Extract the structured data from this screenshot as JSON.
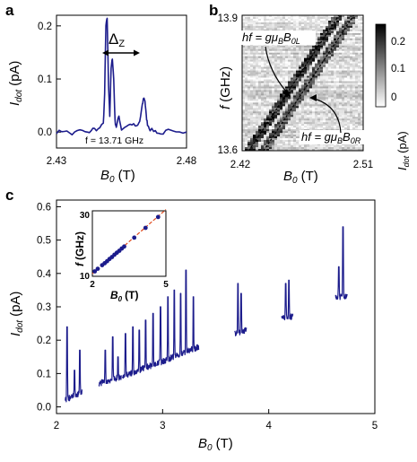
{
  "panels": {
    "a": {
      "label": "a"
    },
    "b": {
      "label": "b"
    },
    "c": {
      "label": "c"
    }
  },
  "chart_data": [
    {
      "id": "a",
      "type": "line",
      "x_ticks": [
        "2.43",
        "2.48"
      ],
      "y_ticks": [
        "0.0",
        "0.1",
        "0.2"
      ],
      "xlim": [
        2.43,
        2.48
      ],
      "ylim": [
        -0.03,
        0.22
      ],
      "xlabel_main": "B",
      "xlabel_sub": "0",
      "xlabel_unit": "(T)",
      "ylabel_main": "I",
      "ylabel_sub": "dot",
      "ylabel_unit": "(pA)",
      "annotation_freq": "f = 13.71 GHz",
      "annotation_delta_main": "Δ",
      "annotation_delta_sub": "Z",
      "color": "#1c1c8c",
      "x": [
        2.43,
        2.433,
        2.436,
        2.439,
        2.442,
        2.444,
        2.446,
        2.448,
        2.4485,
        2.449,
        2.4495,
        2.45,
        2.4505,
        2.451,
        2.4515,
        2.452,
        2.4525,
        2.453,
        2.454,
        2.455,
        2.457,
        2.459,
        2.461,
        2.462,
        2.463,
        2.4635,
        2.464,
        2.4645,
        2.465,
        2.466,
        2.468,
        2.47,
        2.473,
        2.476,
        2.48
      ],
      "y": [
        0.0,
        0.003,
        -0.004,
        0.004,
        -0.002,
        0.006,
        0.005,
        0.015,
        0.07,
        0.2,
        0.215,
        0.09,
        0.03,
        0.12,
        0.14,
        0.1,
        0.02,
        0.01,
        0.03,
        0.005,
        0.012,
        0.015,
        0.01,
        0.02,
        0.05,
        0.065,
        0.06,
        0.03,
        0.015,
        0.005,
        0.002,
        -0.004,
        0.003,
        -0.002,
        0.0
      ]
    },
    {
      "id": "b",
      "type": "heatmap",
      "x_ticks": [
        "2.42",
        "2.51"
      ],
      "y_ticks": [
        "13.6",
        "13.9"
      ],
      "xlim": [
        2.42,
        2.51
      ],
      "ylim": [
        13.6,
        13.9
      ],
      "xlabel_main": "B",
      "xlabel_sub": "0",
      "xlabel_unit": "(T)",
      "ylabel_main": "f",
      "ylabel_unit": "(GHz)",
      "colorbar_ticks": [
        "0.2",
        "0.1",
        "0"
      ],
      "colorbar_range": [
        0,
        0.25
      ],
      "colorbar_label_main": "I",
      "colorbar_label_sub": "dot",
      "colorbar_label_unit": "(pA)",
      "line_left_label": {
        "pre": "hf = gμ",
        "sub1": "B",
        "mid": "B",
        "sub2": "0L"
      },
      "line_right_label": {
        "pre": "hf = gμ",
        "sub1": "B",
        "mid": "B",
        "sub2": "0R"
      },
      "line_left": [
        [
          2.425,
          13.6
        ],
        [
          2.492,
          13.9
        ]
      ],
      "line_right": [
        [
          2.436,
          13.6
        ],
        [
          2.503,
          13.9
        ]
      ]
    },
    {
      "id": "c",
      "type": "line",
      "x_ticks": [
        "2",
        "3",
        "4",
        "5"
      ],
      "y_ticks": [
        "0.0",
        "0.1",
        "0.2",
        "0.3",
        "0.4",
        "0.5",
        "0.6"
      ],
      "xlim": [
        2,
        5
      ],
      "ylim": [
        -0.02,
        0.62
      ],
      "xlabel_main": "B",
      "xlabel_sub": "0",
      "xlabel_unit": "(T)",
      "ylabel_main": "I",
      "ylabel_sub": "dot",
      "ylabel_unit": "(pA)",
      "color": "#1c1c8c",
      "segments": [
        {
          "x0": 2.08,
          "x1": 2.24,
          "base0": 0.02,
          "base1": 0.045,
          "peaks": [
            [
              2.1,
              0.24
            ],
            [
              2.17,
              0.11
            ],
            [
              2.22,
              0.17
            ]
          ]
        },
        {
          "x0": 2.4,
          "x1": 2.61,
          "base0": 0.07,
          "base1": 0.09,
          "peaks": [
            [
              2.46,
              0.17
            ],
            [
              2.53,
              0.21
            ],
            [
              2.58,
              0.15
            ]
          ]
        },
        {
          "x0": 2.62,
          "x1": 2.94,
          "base0": 0.09,
          "base1": 0.13,
          "peaks": [
            [
              2.65,
              0.22
            ],
            [
              2.72,
              0.24
            ],
            [
              2.78,
              0.23
            ],
            [
              2.84,
              0.26
            ],
            [
              2.91,
              0.28
            ]
          ]
        },
        {
          "x0": 2.95,
          "x1": 3.34,
          "base0": 0.13,
          "base1": 0.18,
          "peaks": [
            [
              2.98,
              0.3
            ],
            [
              3.05,
              0.33
            ],
            [
              3.11,
              0.35
            ],
            [
              3.17,
              0.34
            ],
            [
              3.22,
              0.41
            ],
            [
              3.29,
              0.33
            ]
          ]
        },
        {
          "x0": 3.68,
          "x1": 3.79,
          "base0": 0.22,
          "base1": 0.23,
          "peaks": [
            [
              3.71,
              0.37
            ],
            [
              3.74,
              0.34
            ]
          ]
        },
        {
          "x0": 4.12,
          "x1": 4.23,
          "base0": 0.27,
          "base1": 0.27,
          "peaks": [
            [
              4.16,
              0.37
            ],
            [
              4.19,
              0.38
            ]
          ]
        },
        {
          "x0": 4.63,
          "x1": 4.74,
          "base0": 0.33,
          "base1": 0.33,
          "peaks": [
            [
              4.66,
              0.42
            ],
            [
              4.7,
              0.54
            ]
          ]
        }
      ],
      "inset": {
        "type": "scatter",
        "x_ticks": [
          "2",
          "5"
        ],
        "y_ticks": [
          "10",
          "30"
        ],
        "xlim": [
          2,
          5
        ],
        "ylim": [
          10,
          30
        ],
        "xlabel_main": "B",
        "xlabel_sub": "0",
        "xlabel_unit": "(T)",
        "ylabel_main": "f",
        "ylabel_unit": "(GHz)",
        "point_color": "#1c1c8c",
        "fit_color": "#e04a1e",
        "x": [
          2.1,
          2.22,
          2.4,
          2.5,
          2.6,
          2.7,
          2.8,
          2.9,
          3.0,
          3.1,
          3.2,
          3.3,
          3.71,
          4.17,
          4.68
        ],
        "y": [
          11.5,
          12.3,
          13.4,
          14.0,
          14.6,
          15.3,
          15.9,
          16.6,
          17.2,
          17.8,
          18.5,
          19.1,
          21.8,
          24.8,
          28.1
        ],
        "fit": [
          [
            2.0,
            10.8
          ],
          [
            5.0,
            30.4
          ]
        ]
      }
    }
  ]
}
